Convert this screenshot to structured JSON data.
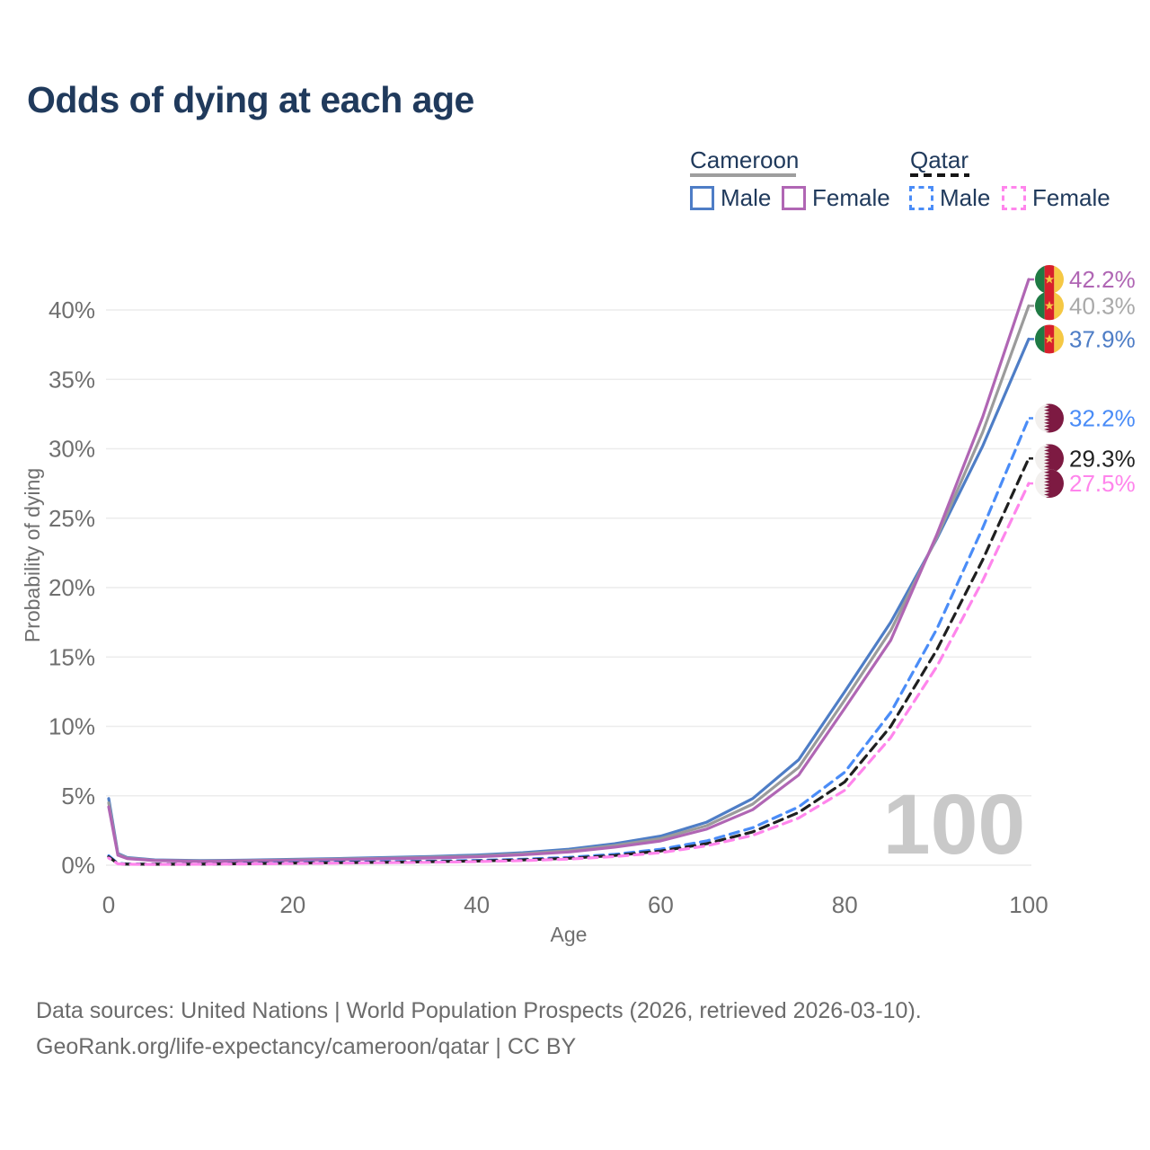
{
  "title": "Odds of dying at each age",
  "legend": {
    "groups": [
      {
        "name": "Cameroon",
        "line_style": "solid",
        "underline_color": "#9e9e9e",
        "items": [
          {
            "label": "Male",
            "color": "#4e7dc6"
          },
          {
            "label": "Female",
            "color": "#b066b4"
          }
        ]
      },
      {
        "name": "Qatar",
        "line_style": "dashed",
        "underline_color": "#161616",
        "items": [
          {
            "label": "Male",
            "color": "#4a8cf7"
          },
          {
            "label": "Female",
            "color": "#ff85ec"
          }
        ]
      }
    ]
  },
  "watermark_age": "100",
  "footer": {
    "line1": "Data sources: United Nations | World Population Prospects (2026, retrieved 2026-03-10).",
    "line2": "GeoRank.org/life-expectancy/cameroon/qatar | CC BY"
  },
  "flag_colors": {
    "cameroon": {
      "green": "#1f7a44",
      "red": "#d7202c",
      "yellow": "#f5c844",
      "star": "#f5c844"
    },
    "qatar": {
      "white": "#f2f0ee",
      "maroon": "#7d1a42"
    }
  },
  "chart_data": {
    "type": "line",
    "title": "Odds of dying at each age",
    "xlabel": "Age",
    "ylabel": "Probability of dying",
    "xlim": [
      0,
      100
    ],
    "ylim_pct": [
      0,
      44
    ],
    "grid": "horizontal",
    "x_ticks": [
      0,
      20,
      40,
      60,
      80,
      100
    ],
    "y_ticks_pct": [
      0,
      5,
      10,
      15,
      20,
      25,
      30,
      35,
      40
    ],
    "ages": [
      0,
      1,
      2,
      5,
      10,
      15,
      20,
      25,
      30,
      35,
      40,
      45,
      50,
      55,
      60,
      65,
      70,
      75,
      80,
      85,
      90,
      95,
      100
    ],
    "series": [
      {
        "id": "cameroon-male",
        "name": "Cameroon Male",
        "country": "Cameroon",
        "sex": "male",
        "color": "#4e7dc6",
        "dash": false,
        "flag": "cameroon",
        "end_label": "37.9%",
        "end_value_pct": 37.9,
        "values_pct": [
          4.8,
          0.85,
          0.55,
          0.38,
          0.33,
          0.36,
          0.42,
          0.48,
          0.55,
          0.63,
          0.73,
          0.9,
          1.15,
          1.55,
          2.1,
          3.1,
          4.8,
          7.6,
          12.5,
          17.5,
          23.5,
          30.2,
          37.9
        ]
      },
      {
        "id": "cameroon-both",
        "name": "Cameroon Both sexes",
        "country": "Cameroon",
        "sex": "both",
        "color": "#9b9b9b",
        "label_color": "#a9a9a9",
        "dash": false,
        "flag": "cameroon",
        "end_label": "40.3%",
        "end_value_pct": 40.3,
        "values_pct": [
          4.5,
          0.78,
          0.51,
          0.35,
          0.3,
          0.33,
          0.38,
          0.44,
          0.5,
          0.57,
          0.66,
          0.82,
          1.05,
          1.42,
          1.92,
          2.85,
          4.4,
          7.05,
          11.9,
          16.9,
          23.6,
          31.2,
          40.3
        ]
      },
      {
        "id": "cameroon-female",
        "name": "Cameroon Female",
        "country": "Cameroon",
        "sex": "female",
        "color": "#b066b4",
        "dash": false,
        "flag": "cameroon",
        "end_label": "42.2%",
        "end_value_pct": 42.2,
        "values_pct": [
          4.2,
          0.72,
          0.48,
          0.33,
          0.28,
          0.31,
          0.35,
          0.4,
          0.46,
          0.52,
          0.6,
          0.75,
          0.95,
          1.3,
          1.75,
          2.6,
          4.0,
          6.5,
          11.3,
          16.2,
          23.8,
          32.3,
          42.2
        ]
      },
      {
        "id": "qatar-male",
        "name": "Qatar Male",
        "country": "Qatar",
        "sex": "male",
        "color": "#4a8cf7",
        "dash": true,
        "flag": "qatar",
        "end_label": "32.2%",
        "end_value_pct": 32.2,
        "values_pct": [
          0.68,
          0.12,
          0.09,
          0.07,
          0.08,
          0.13,
          0.18,
          0.22,
          0.25,
          0.29,
          0.34,
          0.43,
          0.56,
          0.78,
          1.15,
          1.75,
          2.7,
          4.2,
          6.7,
          11.0,
          17.0,
          24.3,
          32.2
        ]
      },
      {
        "id": "qatar-both",
        "name": "Qatar Both sexes",
        "country": "Qatar",
        "sex": "both",
        "color": "#1f1f1f",
        "label_color": "#222222",
        "dash": true,
        "flag": "qatar",
        "end_label": "29.3%",
        "end_value_pct": 29.3,
        "values_pct": [
          0.6,
          0.11,
          0.08,
          0.07,
          0.08,
          0.11,
          0.15,
          0.18,
          0.21,
          0.25,
          0.3,
          0.38,
          0.5,
          0.7,
          1.02,
          1.55,
          2.4,
          3.8,
          6.0,
          10.0,
          15.5,
          22.0,
          29.3
        ]
      },
      {
        "id": "qatar-female",
        "name": "Qatar Female",
        "country": "Qatar",
        "sex": "female",
        "color": "#ff85ec",
        "dash": true,
        "flag": "qatar",
        "end_label": "27.5%",
        "end_value_pct": 27.5,
        "values_pct": [
          0.52,
          0.1,
          0.07,
          0.06,
          0.07,
          0.09,
          0.12,
          0.15,
          0.18,
          0.21,
          0.26,
          0.33,
          0.44,
          0.62,
          0.9,
          1.4,
          2.15,
          3.4,
          5.4,
          9.2,
          14.3,
          20.5,
          27.5
        ]
      }
    ]
  }
}
